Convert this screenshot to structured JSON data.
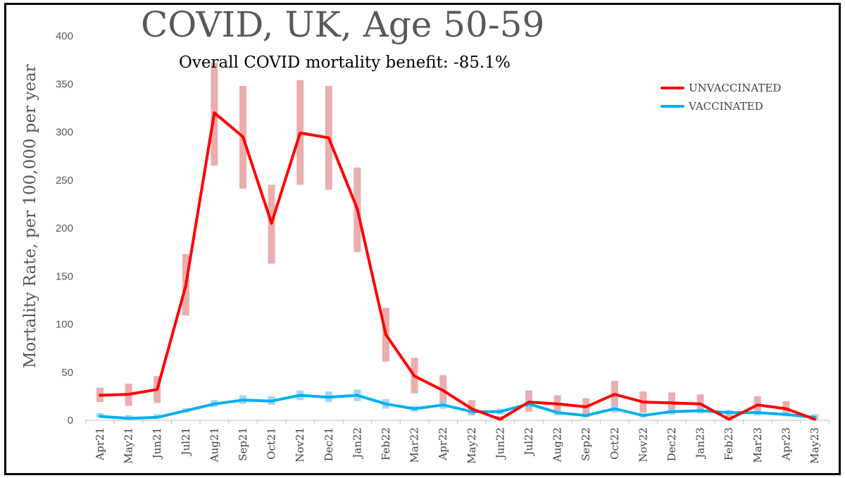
{
  "title": "COVID, UK, Age 50-59",
  "subtitle": "Overall COVID mortality benefit: -85.1%",
  "colors": {
    "unvaccinated": "#ff0000",
    "vaccinated": "#00b0f0",
    "unvax_err": "#e8a0a0",
    "vax_err": "#8fd0f2"
  },
  "chart_data": {
    "type": "line",
    "title": "COVID, UK, Age 50-59",
    "subtitle": "Overall COVID mortality benefit: -85.1%",
    "xlabel": "",
    "ylabel": "Mortality Rate, per 100,000 per year",
    "ylim": [
      0,
      400
    ],
    "yticks": [
      "0",
      "50",
      "100",
      "150",
      "200",
      "250",
      "300",
      "350",
      "400"
    ],
    "grid": false,
    "legend_position": "top-right",
    "categories": [
      "Apr21",
      "May21",
      "Jun21",
      "Jul21",
      "Aug21",
      "Sep21",
      "Oct21",
      "Nov21",
      "Dec21",
      "Jan22",
      "Feb22",
      "Mar22",
      "Apr22",
      "May22",
      "Jun22",
      "Jul22",
      "Aug22",
      "Sep22",
      "Oct22",
      "Nov22",
      "Dec22",
      "Jan23",
      "Feb23",
      "Mar23",
      "Apr23",
      "May23"
    ],
    "series": [
      {
        "name": "UNVACCINATED",
        "values": [
          26,
          27,
          32,
          140,
          320,
          295,
          205,
          299,
          294,
          220,
          89,
          46,
          31,
          12,
          1,
          19,
          17,
          14,
          27,
          19,
          18,
          17,
          1,
          16,
          12,
          1
        ],
        "err_low": [
          19,
          15,
          18,
          109,
          265,
          241,
          163,
          245,
          240,
          175,
          61,
          28,
          18,
          5,
          0,
          9,
          8,
          7,
          15,
          8,
          8,
          8,
          0,
          7,
          5,
          0
        ],
        "err_high": [
          34,
          38,
          46,
          173,
          372,
          348,
          245,
          354,
          348,
          263,
          117,
          65,
          47,
          21,
          4,
          31,
          26,
          23,
          41,
          30,
          29,
          27,
          10,
          25,
          20,
          4
        ]
      },
      {
        "name": "VACCINATED",
        "values": [
          4,
          2,
          3,
          10,
          17,
          21,
          20,
          26,
          24,
          26,
          17,
          12,
          16,
          9,
          9,
          17,
          8,
          5,
          12,
          5,
          9,
          10,
          8,
          8,
          6,
          3
        ],
        "err_low": [
          3,
          1,
          2,
          8,
          14,
          17,
          16,
          21,
          19,
          20,
          12,
          9,
          12,
          6,
          6,
          13,
          5,
          3,
          8,
          3,
          6,
          7,
          5,
          5,
          4,
          2
        ],
        "err_high": [
          5,
          3,
          4,
          12,
          21,
          26,
          25,
          31,
          30,
          32,
          22,
          15,
          20,
          12,
          12,
          21,
          10,
          7,
          16,
          7,
          12,
          13,
          11,
          11,
          9,
          5
        ]
      }
    ]
  }
}
